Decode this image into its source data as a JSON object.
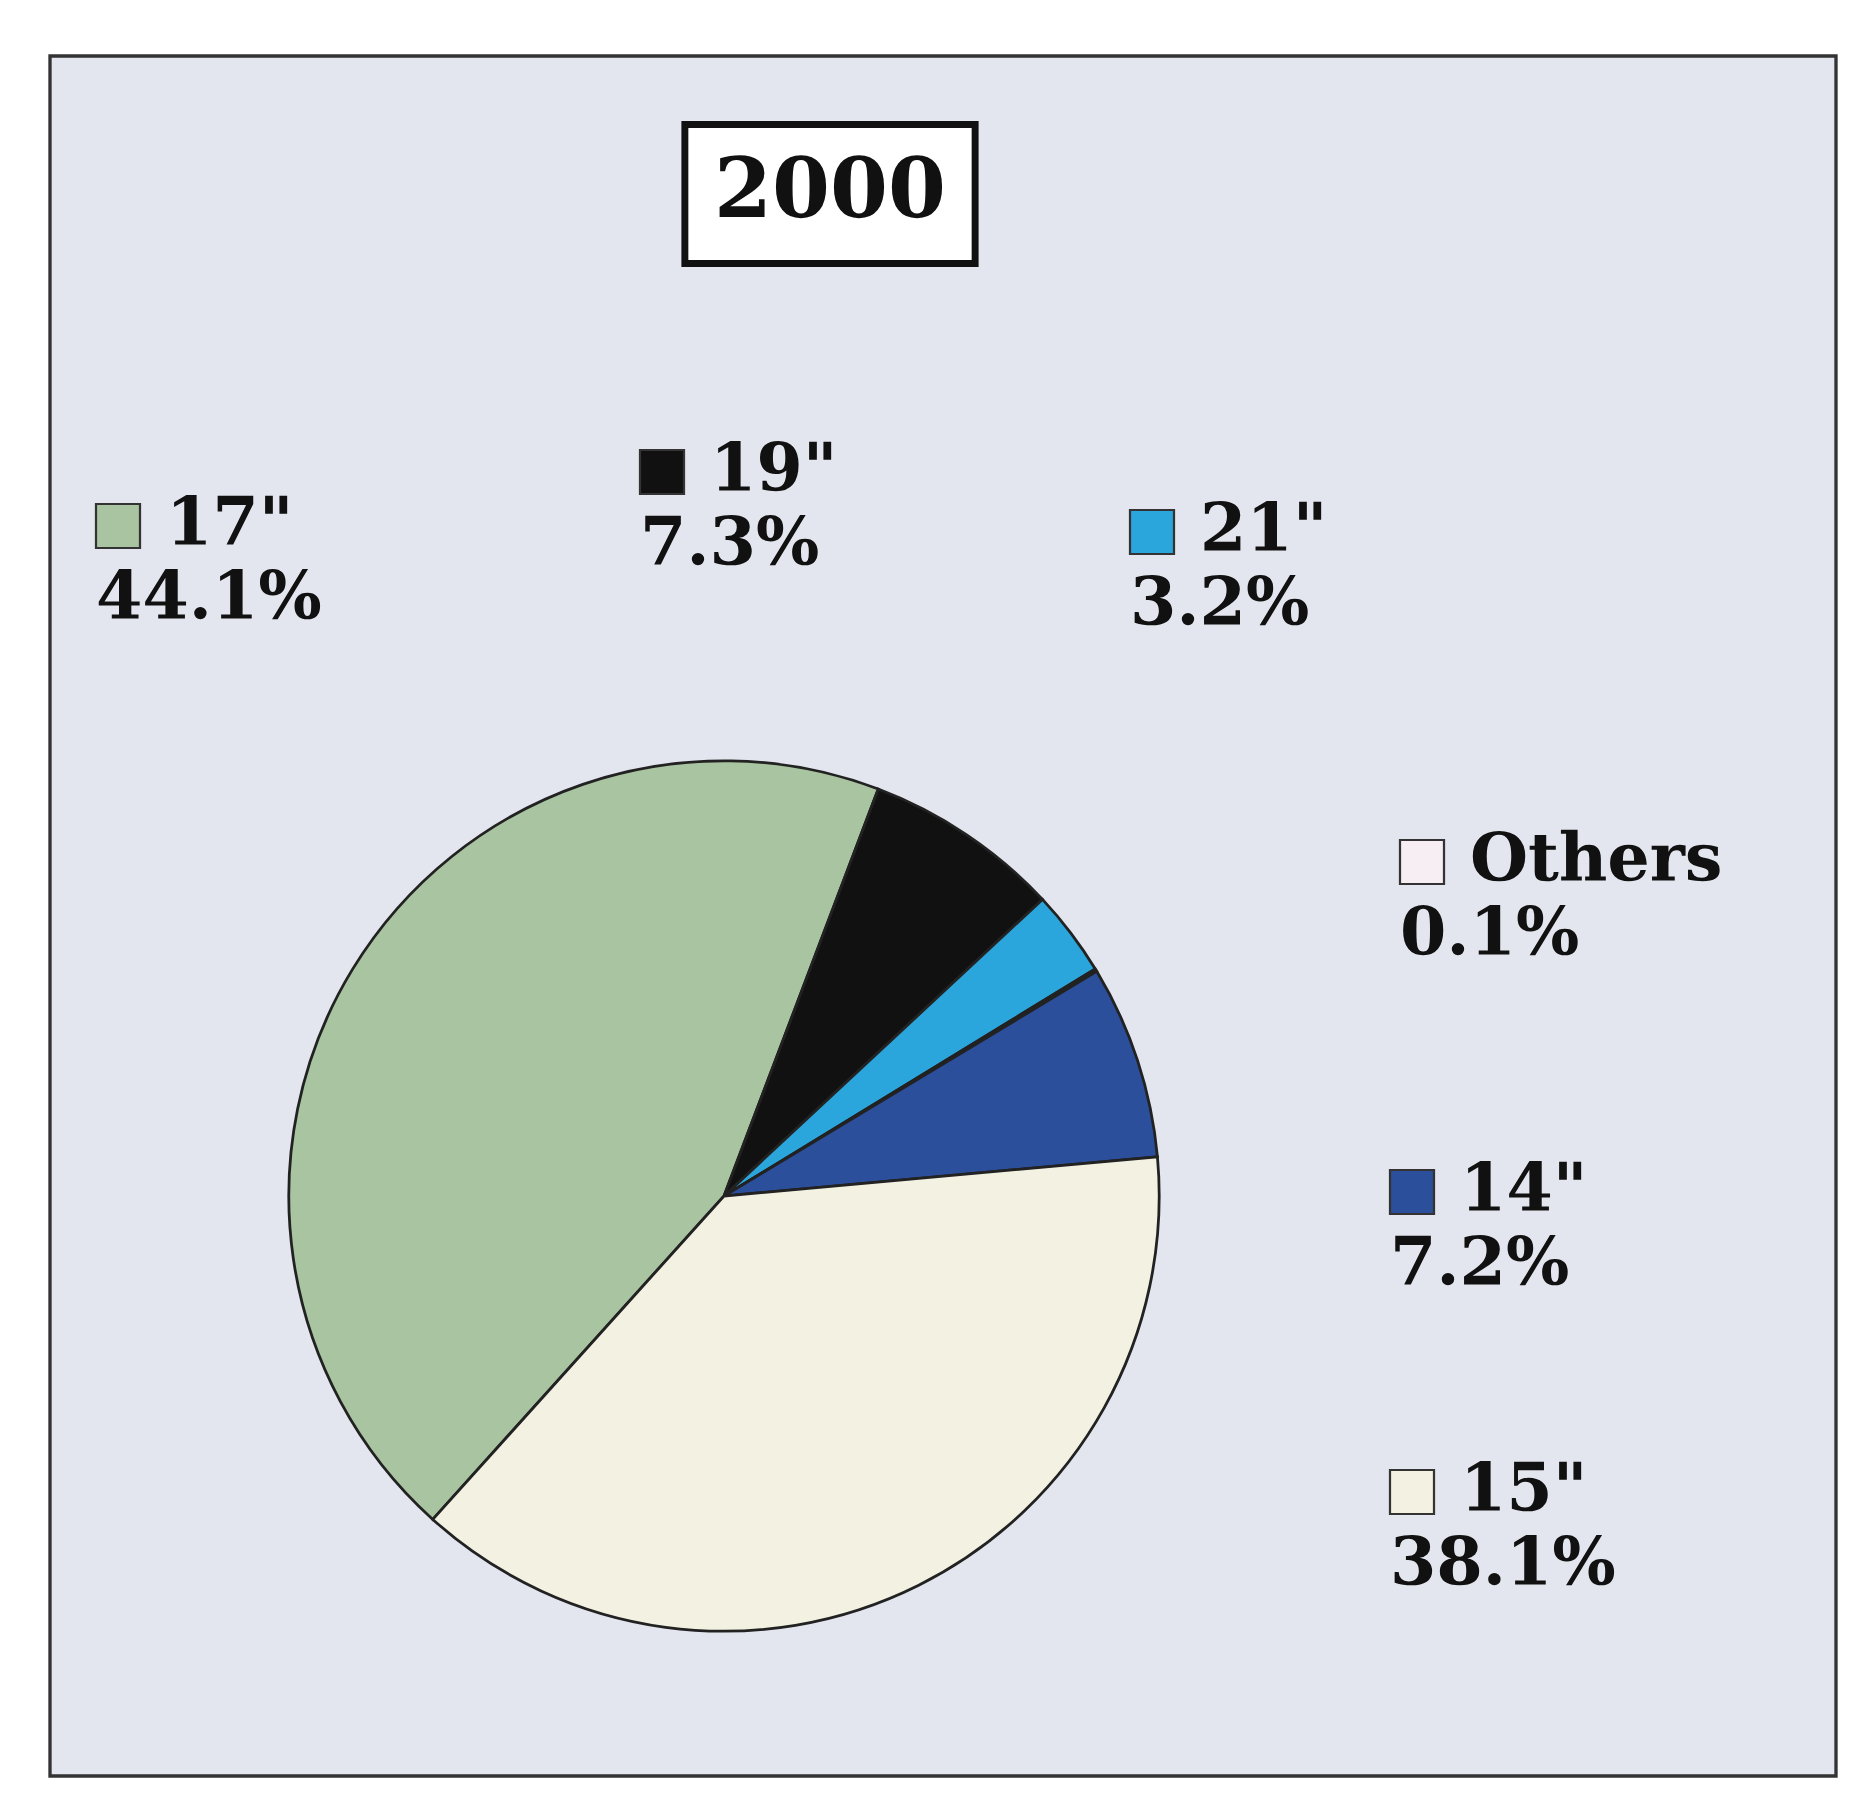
{
  "chart_data": {
    "type": "pie",
    "title": "2000",
    "categories": [
      "17\"",
      "19\"",
      "21\"",
      "Others",
      "14\"",
      "15\""
    ],
    "values": [
      44.1,
      7.3,
      3.2,
      0.1,
      7.2,
      38.1
    ],
    "colors": [
      "#a9c4a0",
      "#111111",
      "#2aa6dc",
      "#f6eef2",
      "#2c4f9c",
      "#f3f2e2"
    ],
    "value_labels": [
      "44.1%",
      "7.3%",
      "3.2%",
      "0.1%",
      "7.2%",
      "38.1%"
    ],
    "legend": "right"
  }
}
